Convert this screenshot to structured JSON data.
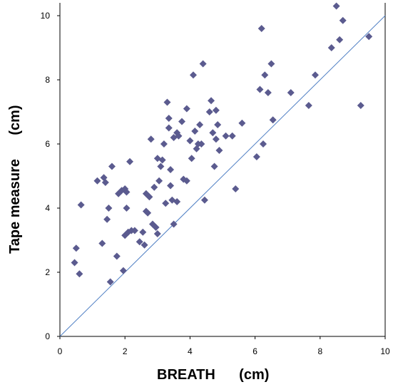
{
  "chart_data": {
    "type": "scatter",
    "title": "",
    "xlabel": "BREATH      (cm)",
    "ylabel": "Tape measure      (cm)",
    "xlim": [
      0,
      10
    ],
    "ylim": [
      0,
      10
    ],
    "x_ticks": [
      "0",
      "2",
      "4",
      "6",
      "8",
      "10"
    ],
    "y_ticks": [
      "0",
      "2",
      "4",
      "6",
      "8",
      "10"
    ],
    "grid": false,
    "legend": "none",
    "marker_color": "#5b5b8f",
    "reference_line": {
      "color": "#4f7fc4",
      "from": [
        0,
        0
      ],
      "to": [
        10,
        10
      ]
    },
    "series": [
      {
        "x": [
          0.45,
          0.5,
          0.6,
          0.65,
          1.15,
          1.3,
          1.35,
          1.4,
          1.45,
          1.5,
          1.55,
          1.6,
          1.75,
          1.8,
          1.9,
          1.95,
          2.0,
          2.0,
          2.05,
          2.05,
          2.1,
          2.15,
          2.2,
          2.3,
          2.45,
          2.55,
          2.6,
          2.65,
          2.65,
          2.7,
          2.75,
          2.8,
          2.85,
          2.9,
          2.95,
          3.0,
          3.0,
          3.05,
          3.1,
          3.15,
          3.2,
          3.25,
          3.3,
          3.35,
          3.35,
          3.4,
          3.4,
          3.45,
          3.5,
          3.5,
          3.6,
          3.6,
          3.65,
          3.75,
          3.8,
          3.9,
          3.9,
          4.0,
          4.05,
          4.1,
          4.15,
          4.2,
          4.25,
          4.3,
          4.35,
          4.4,
          4.45,
          4.6,
          4.65,
          4.7,
          4.75,
          4.8,
          4.8,
          4.85,
          4.9,
          5.1,
          5.3,
          5.4,
          5.6,
          6.05,
          6.15,
          6.2,
          6.25,
          6.3,
          6.4,
          6.5,
          6.55,
          7.1,
          7.65,
          7.85,
          8.35,
          8.5,
          8.6,
          8.7,
          9.25,
          9.5
        ],
        "y": [
          2.3,
          2.75,
          1.95,
          4.1,
          4.85,
          2.9,
          4.95,
          4.8,
          3.65,
          4.0,
          1.7,
          5.3,
          2.5,
          4.45,
          4.55,
          2.05,
          4.6,
          3.15,
          4.5,
          4.0,
          3.25,
          5.45,
          3.3,
          3.3,
          2.95,
          3.25,
          2.85,
          4.45,
          3.9,
          3.85,
          4.35,
          6.15,
          3.5,
          4.65,
          3.4,
          5.55,
          3.2,
          4.85,
          5.3,
          5.5,
          6.0,
          4.15,
          7.3,
          6.8,
          6.5,
          5.2,
          4.7,
          4.25,
          6.2,
          3.5,
          6.35,
          4.2,
          6.25,
          6.7,
          4.9,
          7.1,
          4.85,
          6.1,
          5.55,
          8.15,
          6.4,
          5.85,
          6.0,
          6.6,
          6.0,
          8.5,
          4.25,
          7.0,
          7.35,
          6.35,
          5.3,
          7.05,
          6.15,
          6.6,
          5.8,
          6.25,
          6.25,
          4.6,
          6.65,
          5.6,
          7.7,
          9.6,
          6.0,
          8.15,
          7.6,
          8.5,
          6.75,
          7.6,
          7.2,
          8.15,
          9.0,
          10.3,
          9.25,
          9.85,
          7.2,
          9.35
        ]
      }
    ]
  }
}
